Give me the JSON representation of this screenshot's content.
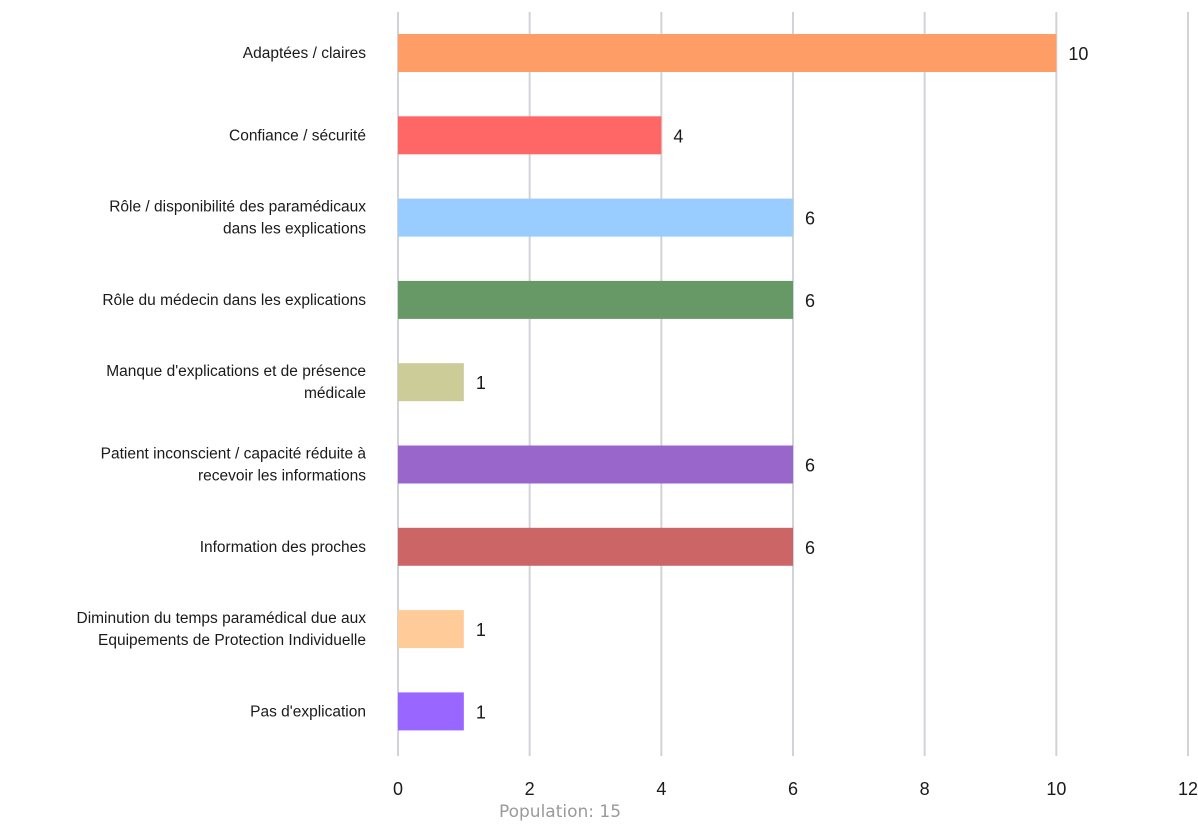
{
  "chart_data": {
    "type": "bar",
    "orientation": "horizontal",
    "categories": [
      [
        "Adaptées / claires"
      ],
      [
        "Confiance / sécurité"
      ],
      [
        "Rôle / disponibilité des paramédicaux",
        "dans les explications"
      ],
      [
        "Rôle du médecin dans les explications"
      ],
      [
        "Manque d'explications et de présence",
        "médicale"
      ],
      [
        "Patient inconscient / capacité réduite à",
        "recevoir les informations"
      ],
      [
        "Information des proches"
      ],
      [
        "Diminution du temps paramédical due aux",
        "Equipements de Protection Individuelle"
      ],
      [
        "Pas d'explication"
      ]
    ],
    "values": [
      10,
      4,
      6,
      6,
      1,
      6,
      6,
      1,
      1
    ],
    "colors": [
      "#ff9d66",
      "#ff6666",
      "#99ccff",
      "#669966",
      "#cccc99",
      "#9966cc",
      "#cc6666",
      "#ffcc99",
      "#9966ff"
    ],
    "xlim": [
      0,
      12
    ],
    "xticks": [
      "0",
      "2",
      "4",
      "6",
      "8",
      "10",
      "12"
    ],
    "grid": true,
    "footnote": "Population: 15"
  }
}
